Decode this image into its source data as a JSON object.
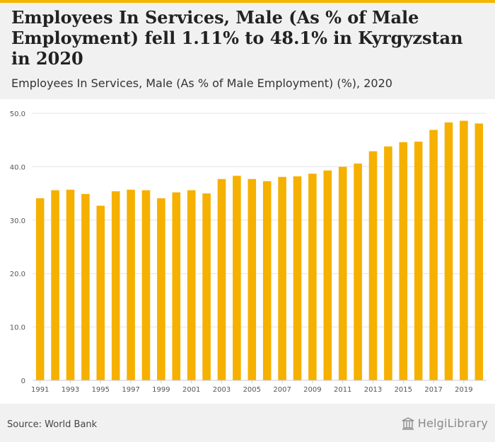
{
  "header": {
    "title": "Employees In Services, Male (As % of Male Employment) fell 1.11% to 48.1% in Kyrgyzstan in 2020",
    "subtitle": "Employees In Services, Male (As % of Male Employment) (%), 2020"
  },
  "footer": {
    "source": "Source: World Bank",
    "logo_text": "HelgiLibrary"
  },
  "colors": {
    "accent": "#f5b400",
    "bar": "#f5b000",
    "grid": "#e3e3e3",
    "axis_text": "#555555"
  },
  "chart_data": {
    "type": "bar",
    "title": "Employees In Services, Male (As % of Male Employment) (%), 2020",
    "xlabel": "",
    "ylabel": "",
    "ylim": [
      0,
      50
    ],
    "grid": true,
    "y_ticks": [
      0,
      10,
      20,
      30,
      40,
      50
    ],
    "y_tick_labels": [
      "0",
      "10.0",
      "20.0",
      "30.0",
      "40.0",
      "50.0"
    ],
    "x_tick_labels": [
      "1991",
      "1993",
      "1995",
      "1997",
      "1999",
      "2001",
      "2003",
      "2005",
      "2007",
      "2009",
      "2011",
      "2013",
      "2015",
      "2017",
      "2019"
    ],
    "categories": [
      "1991",
      "1992",
      "1993",
      "1994",
      "1995",
      "1996",
      "1997",
      "1998",
      "1999",
      "2000",
      "2001",
      "2002",
      "2003",
      "2004",
      "2005",
      "2006",
      "2007",
      "2008",
      "2009",
      "2010",
      "2011",
      "2012",
      "2013",
      "2014",
      "2015",
      "2016",
      "2017",
      "2018",
      "2019",
      "2020"
    ],
    "values": [
      34.1,
      35.6,
      35.7,
      34.9,
      32.7,
      35.4,
      35.7,
      35.6,
      34.1,
      35.2,
      35.6,
      35.0,
      37.7,
      38.3,
      37.7,
      37.3,
      38.1,
      38.2,
      38.7,
      39.3,
      40.0,
      40.6,
      42.9,
      43.8,
      44.6,
      44.7,
      46.9,
      48.3,
      48.6,
      48.1
    ]
  }
}
